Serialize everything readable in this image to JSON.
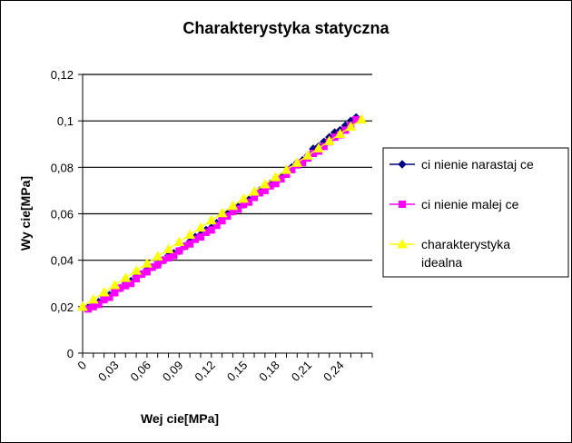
{
  "chart_data": {
    "type": "line",
    "title": "Charakterystyka statyczna",
    "xlabel": "Wej  cie[MPa]",
    "ylabel": "Wy  cie[MPa]",
    "xlim": [
      0,
      0.27
    ],
    "ylim": [
      0,
      0.12
    ],
    "x_ticks": [
      0,
      0.03,
      0.06,
      0.09,
      0.12,
      0.15,
      0.18,
      0.21,
      0.24
    ],
    "x_tick_labels": [
      "0",
      "0,03",
      "0,06",
      "0,09",
      "0,12",
      "0,15",
      "0,18",
      "0,21",
      "0,24"
    ],
    "y_ticks": [
      0,
      0.02,
      0.04,
      0.06,
      0.08,
      0.1,
      0.12
    ],
    "y_tick_labels": [
      "0",
      "0,02",
      "0,04",
      "0,06",
      "0,08",
      "0,1",
      "0,12"
    ],
    "grid": "horizontal",
    "legend_position": "right",
    "series": [
      {
        "name": "ci  nienie narastaj  ce",
        "color": "#000080",
        "marker": "diamond",
        "points": [
          [
            0.005,
            0.0195
          ],
          [
            0.01,
            0.021
          ],
          [
            0.015,
            0.022
          ],
          [
            0.02,
            0.024
          ],
          [
            0.025,
            0.025
          ],
          [
            0.03,
            0.027
          ],
          [
            0.035,
            0.028
          ],
          [
            0.04,
            0.03
          ],
          [
            0.045,
            0.031
          ],
          [
            0.05,
            0.033
          ],
          [
            0.055,
            0.034
          ],
          [
            0.06,
            0.036
          ],
          [
            0.065,
            0.037
          ],
          [
            0.07,
            0.038
          ],
          [
            0.075,
            0.04
          ],
          [
            0.08,
            0.042
          ],
          [
            0.085,
            0.043
          ],
          [
            0.09,
            0.044
          ],
          [
            0.095,
            0.046
          ],
          [
            0.1,
            0.048
          ],
          [
            0.105,
            0.05
          ],
          [
            0.11,
            0.051
          ],
          [
            0.115,
            0.053
          ],
          [
            0.12,
            0.054
          ],
          [
            0.125,
            0.056
          ],
          [
            0.13,
            0.058
          ],
          [
            0.135,
            0.06
          ],
          [
            0.14,
            0.061
          ],
          [
            0.145,
            0.063
          ],
          [
            0.15,
            0.064
          ],
          [
            0.155,
            0.066
          ],
          [
            0.16,
            0.068
          ],
          [
            0.165,
            0.07
          ],
          [
            0.17,
            0.071
          ],
          [
            0.175,
            0.073
          ],
          [
            0.18,
            0.074
          ],
          [
            0.185,
            0.076
          ],
          [
            0.19,
            0.078
          ],
          [
            0.195,
            0.08
          ],
          [
            0.2,
            0.082
          ],
          [
            0.205,
            0.083
          ],
          [
            0.21,
            0.085
          ],
          [
            0.215,
            0.088
          ],
          [
            0.22,
            0.089
          ],
          [
            0.225,
            0.091
          ],
          [
            0.23,
            0.093
          ],
          [
            0.235,
            0.095
          ],
          [
            0.24,
            0.096
          ],
          [
            0.245,
            0.098
          ],
          [
            0.25,
            0.1
          ],
          [
            0.255,
            0.1015
          ]
        ]
      },
      {
        "name": "ci  nienie malej  ce",
        "color": "#ff00ff",
        "marker": "square",
        "points": [
          [
            0.005,
            0.019
          ],
          [
            0.01,
            0.02
          ],
          [
            0.015,
            0.021
          ],
          [
            0.02,
            0.023
          ],
          [
            0.025,
            0.024
          ],
          [
            0.03,
            0.026
          ],
          [
            0.035,
            0.028
          ],
          [
            0.04,
            0.029
          ],
          [
            0.045,
            0.03
          ],
          [
            0.05,
            0.032
          ],
          [
            0.055,
            0.034
          ],
          [
            0.06,
            0.035
          ],
          [
            0.065,
            0.037
          ],
          [
            0.07,
            0.038
          ],
          [
            0.075,
            0.04
          ],
          [
            0.08,
            0.041
          ],
          [
            0.085,
            0.042
          ],
          [
            0.09,
            0.044
          ],
          [
            0.095,
            0.046
          ],
          [
            0.1,
            0.047
          ],
          [
            0.105,
            0.049
          ],
          [
            0.11,
            0.05
          ],
          [
            0.115,
            0.052
          ],
          [
            0.12,
            0.053
          ],
          [
            0.125,
            0.055
          ],
          [
            0.13,
            0.057
          ],
          [
            0.135,
            0.059
          ],
          [
            0.14,
            0.061
          ],
          [
            0.145,
            0.062
          ],
          [
            0.15,
            0.064
          ],
          [
            0.155,
            0.065
          ],
          [
            0.16,
            0.067
          ],
          [
            0.165,
            0.069
          ],
          [
            0.17,
            0.07
          ],
          [
            0.175,
            0.072
          ],
          [
            0.18,
            0.073
          ],
          [
            0.185,
            0.075
          ],
          [
            0.19,
            0.077
          ],
          [
            0.195,
            0.079
          ],
          [
            0.2,
            0.081
          ],
          [
            0.205,
            0.082
          ],
          [
            0.21,
            0.084
          ],
          [
            0.215,
            0.086
          ],
          [
            0.22,
            0.087
          ],
          [
            0.225,
            0.089
          ],
          [
            0.23,
            0.091
          ],
          [
            0.235,
            0.093
          ],
          [
            0.24,
            0.094
          ],
          [
            0.245,
            0.096
          ],
          [
            0.25,
            0.098
          ],
          [
            0.255,
            0.1005
          ]
        ]
      },
      {
        "name": "charakterystyka idealna",
        "name_lines": [
          "charakterystyka",
          "idealna"
        ],
        "color": "#ffff00",
        "marker": "triangle",
        "points": [
          [
            0.0,
            0.02
          ],
          [
            0.01,
            0.0231
          ],
          [
            0.02,
            0.0262
          ],
          [
            0.03,
            0.0293
          ],
          [
            0.04,
            0.0324
          ],
          [
            0.05,
            0.0355
          ],
          [
            0.06,
            0.0386
          ],
          [
            0.07,
            0.0417
          ],
          [
            0.08,
            0.0448
          ],
          [
            0.09,
            0.0479
          ],
          [
            0.1,
            0.051
          ],
          [
            0.11,
            0.0541
          ],
          [
            0.12,
            0.0572
          ],
          [
            0.13,
            0.0603
          ],
          [
            0.14,
            0.0634
          ],
          [
            0.15,
            0.0665
          ],
          [
            0.16,
            0.0696
          ],
          [
            0.17,
            0.0727
          ],
          [
            0.18,
            0.0758
          ],
          [
            0.19,
            0.0789
          ],
          [
            0.2,
            0.082
          ],
          [
            0.21,
            0.0851
          ],
          [
            0.22,
            0.0882
          ],
          [
            0.23,
            0.0913
          ],
          [
            0.24,
            0.0944
          ],
          [
            0.25,
            0.0975
          ],
          [
            0.26,
            0.1006
          ]
        ]
      }
    ]
  }
}
